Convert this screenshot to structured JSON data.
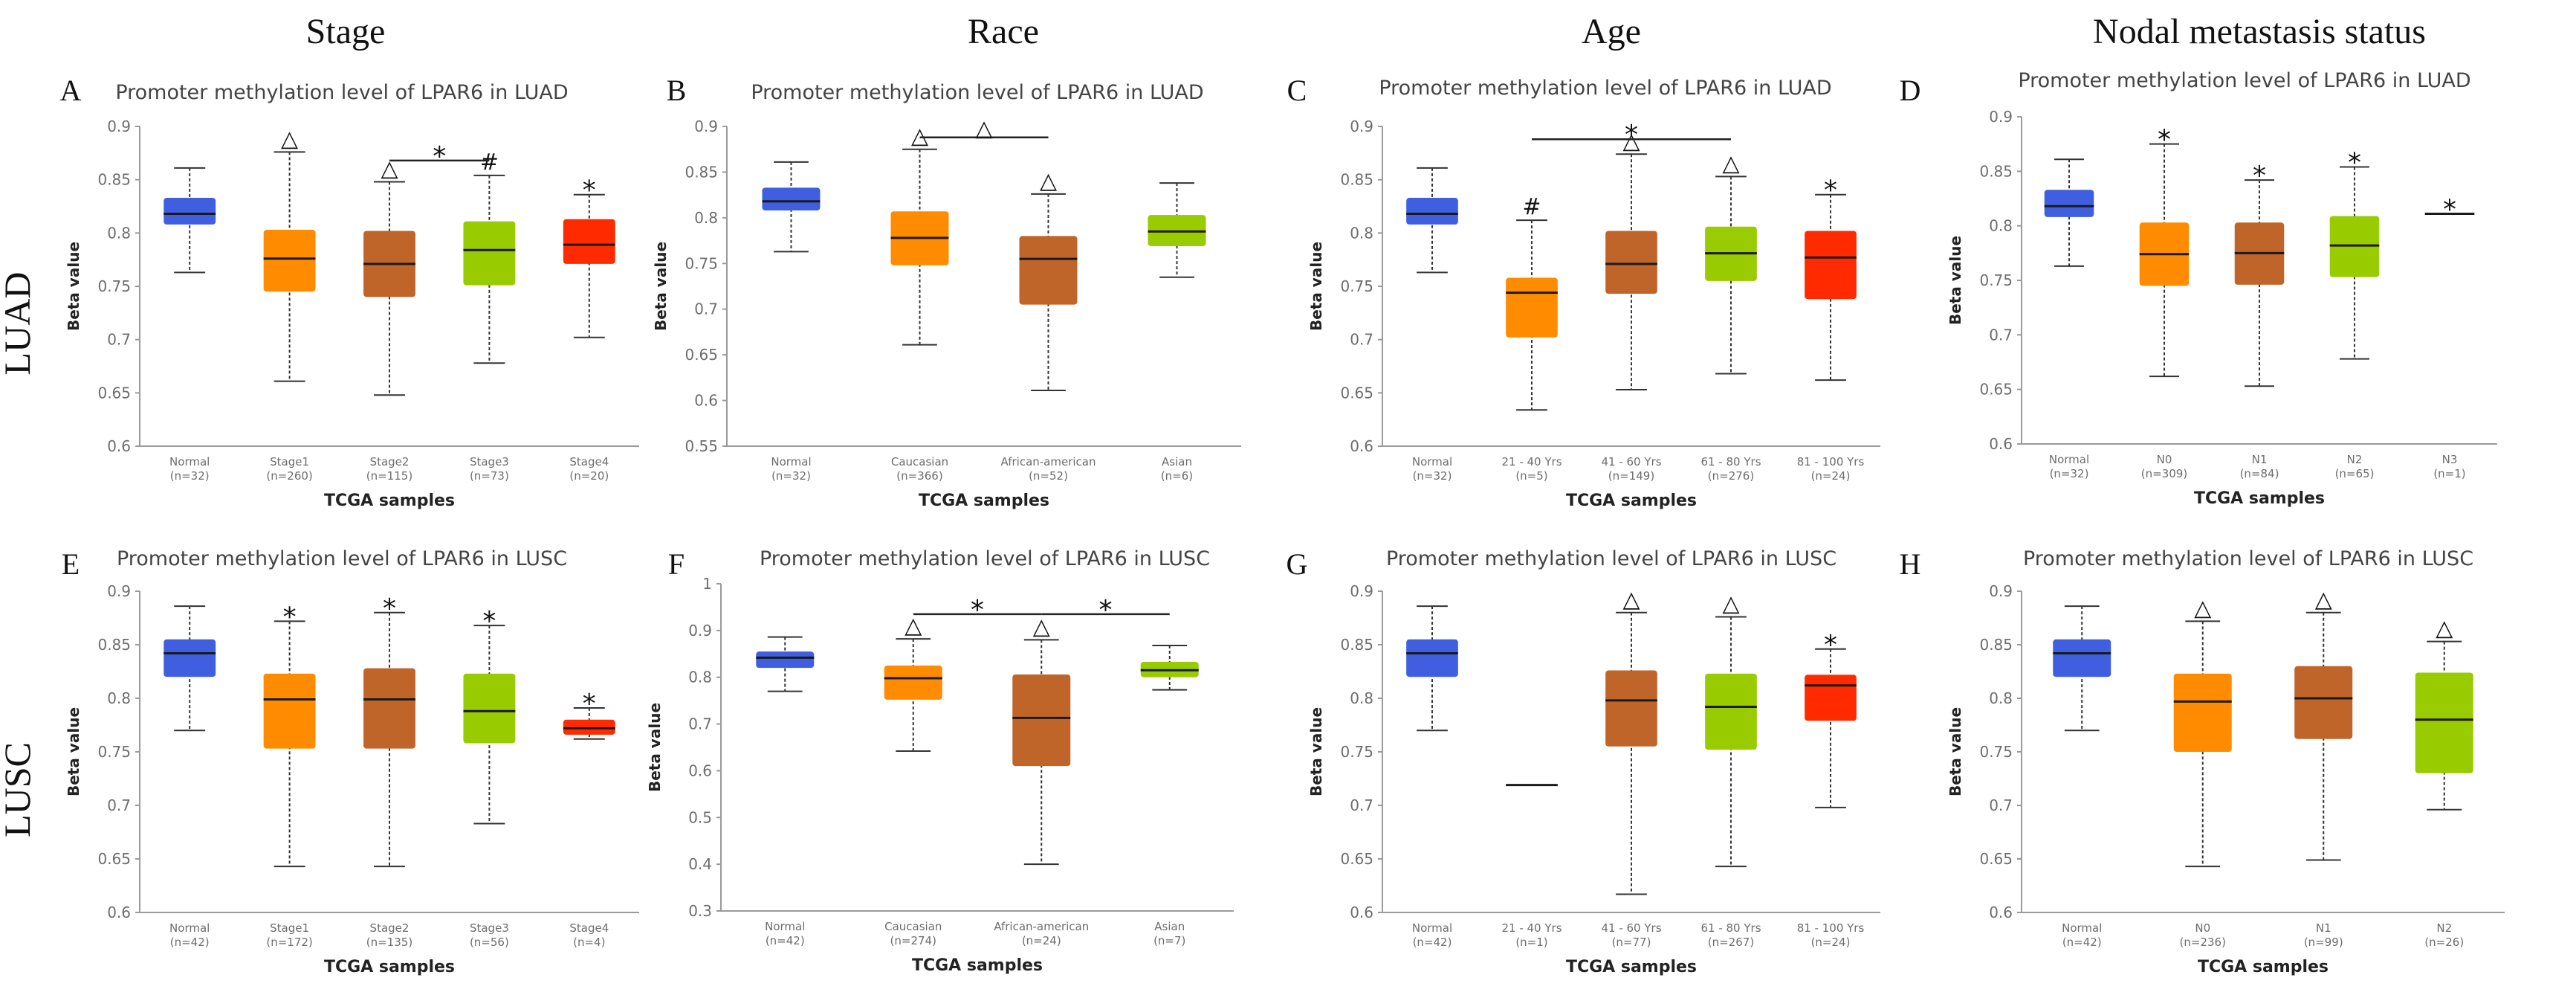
{
  "figure": {
    "column_headers": [
      "Stage",
      "Race",
      "Age",
      "Nodal metastasis status"
    ],
    "row_labels": [
      "LUAD",
      "LUSC"
    ]
  },
  "chart_data": [
    {
      "type": "box",
      "panel": "A",
      "title": "Promoter methylation level of LPAR6 in LUAD",
      "xlabel": "TCGA samples",
      "ylabel": "Beta value",
      "ylim": [
        0.6,
        0.9
      ],
      "yticks": [
        "0.6",
        "0.65",
        "0.7",
        "0.75",
        "0.8",
        "0.85",
        "0.9"
      ],
      "categories": [
        "Normal",
        "Stage1",
        "Stage2",
        "Stage3",
        "Stage4"
      ],
      "counts": [
        "(n=32)",
        "(n=260)",
        "(n=115)",
        "(n=73)",
        "(n=20)"
      ],
      "colors": [
        "#3f5fe0",
        "#ff8c00",
        "#c0652a",
        "#99cc00",
        "#ff2a00"
      ],
      "boxes": [
        {
          "min": 0.763,
          "q1": 0.808,
          "median": 0.818,
          "q3": 0.833,
          "max": 0.861
        },
        {
          "min": 0.661,
          "q1": 0.745,
          "median": 0.776,
          "q3": 0.803,
          "max": 0.876
        },
        {
          "min": 0.648,
          "q1": 0.74,
          "median": 0.771,
          "q3": 0.802,
          "max": 0.848
        },
        {
          "min": 0.678,
          "q1": 0.751,
          "median": 0.784,
          "q3": 0.811,
          "max": 0.854
        },
        {
          "min": 0.702,
          "q1": 0.771,
          "median": 0.789,
          "q3": 0.813,
          "max": 0.836
        }
      ],
      "markers": [
        {
          "index": 1,
          "symbol": "△",
          "y": 0.876
        },
        {
          "index": 2,
          "symbol": "△",
          "y": 0.848
        },
        {
          "index": 3,
          "symbol": "#",
          "y": 0.854
        },
        {
          "index": 4,
          "symbol": "*",
          "y": 0.836
        }
      ],
      "brackets": [
        {
          "from": 2,
          "to": 3,
          "y": 0.868,
          "symbol": "*"
        }
      ]
    },
    {
      "type": "box",
      "panel": "B",
      "title": "Promoter methylation level of LPAR6 in LUAD",
      "xlabel": "TCGA samples",
      "ylabel": "Beta value",
      "ylim": [
        0.55,
        0.9
      ],
      "yticks": [
        "0.55",
        "0.6",
        "0.65",
        "0.7",
        "0.75",
        "0.8",
        "0.85",
        "0.9"
      ],
      "categories": [
        "Normal",
        "Caucasian",
        "African-american",
        "Asian"
      ],
      "counts": [
        "(n=32)",
        "(n=366)",
        "(n=52)",
        "(n=6)"
      ],
      "colors": [
        "#3f5fe0",
        "#ff8c00",
        "#c0652a",
        "#99cc00"
      ],
      "boxes": [
        {
          "min": 0.763,
          "q1": 0.808,
          "median": 0.818,
          "q3": 0.833,
          "max": 0.861
        },
        {
          "min": 0.661,
          "q1": 0.748,
          "median": 0.778,
          "q3": 0.807,
          "max": 0.875
        },
        {
          "min": 0.611,
          "q1": 0.705,
          "median": 0.755,
          "q3": 0.78,
          "max": 0.826
        },
        {
          "min": 0.735,
          "q1": 0.769,
          "median": 0.785,
          "q3": 0.803,
          "max": 0.838
        }
      ],
      "markers": [
        {
          "index": 1,
          "symbol": "△",
          "y": 0.875
        },
        {
          "index": 2,
          "symbol": "△",
          "y": 0.826
        }
      ],
      "brackets": [
        {
          "from": 1,
          "to": 2,
          "y": 0.888,
          "symbol": "△"
        }
      ]
    },
    {
      "type": "box",
      "panel": "C",
      "title": "Promoter methylation level of LPAR6 in LUAD",
      "xlabel": "TCGA samples",
      "ylabel": "Beta value",
      "ylim": [
        0.6,
        0.9
      ],
      "yticks": [
        "0.6",
        "0.65",
        "0.7",
        "0.75",
        "0.8",
        "0.85",
        "0.9"
      ],
      "categories": [
        "Normal",
        "21 - 40 Yrs",
        "41 - 60 Yrs",
        "61 - 80 Yrs",
        "81 - 100 Yrs"
      ],
      "counts": [
        "(n=32)",
        "(n=5)",
        "(n=149)",
        "(n=276)",
        "(n=24)"
      ],
      "colors": [
        "#3f5fe0",
        "#ff8c00",
        "#c0652a",
        "#99cc00",
        "#ff2a00"
      ],
      "boxes": [
        {
          "min": 0.763,
          "q1": 0.808,
          "median": 0.818,
          "q3": 0.833,
          "max": 0.861
        },
        {
          "min": 0.634,
          "q1": 0.702,
          "median": 0.744,
          "q3": 0.758,
          "max": 0.812
        },
        {
          "min": 0.653,
          "q1": 0.743,
          "median": 0.771,
          "q3": 0.802,
          "max": 0.874
        },
        {
          "min": 0.668,
          "q1": 0.755,
          "median": 0.781,
          "q3": 0.806,
          "max": 0.853
        },
        {
          "min": 0.662,
          "q1": 0.738,
          "median": 0.777,
          "q3": 0.802,
          "max": 0.836
        }
      ],
      "markers": [
        {
          "index": 1,
          "symbol": "#",
          "y": 0.812
        },
        {
          "index": 2,
          "symbol": "△",
          "y": 0.874
        },
        {
          "index": 3,
          "symbol": "△",
          "y": 0.853
        },
        {
          "index": 4,
          "symbol": "*",
          "y": 0.836
        }
      ],
      "brackets": [
        {
          "from": 1,
          "to": 3,
          "y": 0.888,
          "symbol": "*"
        }
      ]
    },
    {
      "type": "box",
      "panel": "D",
      "title": "Promoter methylation level of LPAR6 in LUAD",
      "xlabel": "TCGA samples",
      "ylabel": "Beta value",
      "ylim": [
        0.6,
        0.9
      ],
      "yticks": [
        "0.6",
        "0.65",
        "0.7",
        "0.75",
        "0.8",
        "0.85",
        "0.9"
      ],
      "categories": [
        "Normal",
        "N0",
        "N1",
        "N2",
        "N3"
      ],
      "counts": [
        "(n=32)",
        "(n=309)",
        "(n=84)",
        "(n=65)",
        "(n=1)"
      ],
      "colors": [
        "#3f5fe0",
        "#ff8c00",
        "#c0652a",
        "#99cc00",
        "#ff2a00"
      ],
      "boxes": [
        {
          "min": 0.763,
          "q1": 0.808,
          "median": 0.818,
          "q3": 0.833,
          "max": 0.861
        },
        {
          "min": 0.662,
          "q1": 0.745,
          "median": 0.774,
          "q3": 0.803,
          "max": 0.875
        },
        {
          "min": 0.653,
          "q1": 0.746,
          "median": 0.775,
          "q3": 0.803,
          "max": 0.842
        },
        {
          "min": 0.678,
          "q1": 0.753,
          "median": 0.782,
          "q3": 0.809,
          "max": 0.854
        },
        {
          "min": 0.811,
          "q1": 0.811,
          "median": 0.811,
          "q3": 0.811,
          "max": 0.811
        }
      ],
      "markers": [
        {
          "index": 1,
          "symbol": "*",
          "y": 0.875
        },
        {
          "index": 2,
          "symbol": "*",
          "y": 0.842
        },
        {
          "index": 3,
          "symbol": "*",
          "y": 0.854
        },
        {
          "index": 4,
          "symbol": "*",
          "y": 0.811
        }
      ],
      "brackets": []
    },
    {
      "type": "box",
      "panel": "E",
      "title": "Promoter methylation level of LPAR6 in LUSC",
      "xlabel": "TCGA samples",
      "ylabel": "Beta value",
      "ylim": [
        0.6,
        0.9
      ],
      "yticks": [
        "0.6",
        "0.65",
        "0.7",
        "0.75",
        "0.8",
        "0.85",
        "0.9"
      ],
      "categories": [
        "Normal",
        "Stage1",
        "Stage2",
        "Stage3",
        "Stage4"
      ],
      "counts": [
        "(n=42)",
        "(n=172)",
        "(n=135)",
        "(n=56)",
        "(n=4)"
      ],
      "colors": [
        "#3f5fe0",
        "#ff8c00",
        "#c0652a",
        "#99cc00",
        "#ff2a00"
      ],
      "boxes": [
        {
          "min": 0.77,
          "q1": 0.82,
          "median": 0.842,
          "q3": 0.855,
          "max": 0.886
        },
        {
          "min": 0.643,
          "q1": 0.753,
          "median": 0.799,
          "q3": 0.823,
          "max": 0.872
        },
        {
          "min": 0.643,
          "q1": 0.753,
          "median": 0.799,
          "q3": 0.828,
          "max": 0.88
        },
        {
          "min": 0.683,
          "q1": 0.758,
          "median": 0.788,
          "q3": 0.823,
          "max": 0.868
        },
        {
          "min": 0.762,
          "q1": 0.766,
          "median": 0.772,
          "q3": 0.78,
          "max": 0.791
        }
      ],
      "markers": [
        {
          "index": 1,
          "symbol": "*",
          "y": 0.872
        },
        {
          "index": 2,
          "symbol": "*",
          "y": 0.88
        },
        {
          "index": 3,
          "symbol": "*",
          "y": 0.868
        },
        {
          "index": 4,
          "symbol": "*",
          "y": 0.791
        }
      ],
      "brackets": []
    },
    {
      "type": "box",
      "panel": "F",
      "title": "Promoter methylation level of LPAR6 in LUSC",
      "xlabel": "TCGA samples",
      "ylabel": "Beta value",
      "ylim": [
        0.3,
        1.0
      ],
      "yticks": [
        "0.3",
        "0.4",
        "0.5",
        "0.6",
        "0.7",
        "0.8",
        "0.9",
        "1"
      ],
      "categories": [
        "Normal",
        "Caucasian",
        "African-american",
        "Asian"
      ],
      "counts": [
        "(n=42)",
        "(n=274)",
        "(n=24)",
        "(n=7)"
      ],
      "colors": [
        "#3f5fe0",
        "#ff8c00",
        "#c0652a",
        "#99cc00"
      ],
      "boxes": [
        {
          "min": 0.77,
          "q1": 0.82,
          "median": 0.842,
          "q3": 0.855,
          "max": 0.886
        },
        {
          "min": 0.642,
          "q1": 0.752,
          "median": 0.798,
          "q3": 0.825,
          "max": 0.882
        },
        {
          "min": 0.4,
          "q1": 0.61,
          "median": 0.713,
          "q3": 0.806,
          "max": 0.88
        },
        {
          "min": 0.773,
          "q1": 0.8,
          "median": 0.815,
          "q3": 0.833,
          "max": 0.868
        }
      ],
      "markers": [
        {
          "index": 1,
          "symbol": "△",
          "y": 0.882
        },
        {
          "index": 2,
          "symbol": "△",
          "y": 0.88
        }
      ],
      "brackets": [
        {
          "from": 1,
          "to": 2,
          "y": 0.935,
          "symbol": "*"
        },
        {
          "from": 2,
          "to": 3,
          "y": 0.935,
          "symbol": "*"
        }
      ]
    },
    {
      "type": "box",
      "panel": "G",
      "title": "Promoter methylation level of LPAR6 in LUSC",
      "xlabel": "TCGA samples",
      "ylabel": "Beta value",
      "ylim": [
        0.6,
        0.9
      ],
      "yticks": [
        "0.6",
        "0.65",
        "0.7",
        "0.75",
        "0.8",
        "0.85",
        "0.9"
      ],
      "categories": [
        "Normal",
        "21 - 40 Yrs",
        "41 - 60 Yrs",
        "61 - 80 Yrs",
        "81 - 100 Yrs"
      ],
      "counts": [
        "(n=42)",
        "(n=1)",
        "(n=77)",
        "(n=267)",
        "(n=24)"
      ],
      "colors": [
        "#3f5fe0",
        "#ff8c00",
        "#c0652a",
        "#99cc00",
        "#ff2a00"
      ],
      "boxes": [
        {
          "min": 0.77,
          "q1": 0.82,
          "median": 0.842,
          "q3": 0.855,
          "max": 0.886
        },
        {
          "min": 0.719,
          "q1": 0.719,
          "median": 0.719,
          "q3": 0.719,
          "max": 0.719
        },
        {
          "min": 0.617,
          "q1": 0.755,
          "median": 0.798,
          "q3": 0.826,
          "max": 0.88
        },
        {
          "min": 0.643,
          "q1": 0.752,
          "median": 0.792,
          "q3": 0.823,
          "max": 0.876
        },
        {
          "min": 0.698,
          "q1": 0.779,
          "median": 0.812,
          "q3": 0.822,
          "max": 0.846
        }
      ],
      "markers": [
        {
          "index": 2,
          "symbol": "△",
          "y": 0.88
        },
        {
          "index": 3,
          "symbol": "△",
          "y": 0.876
        },
        {
          "index": 4,
          "symbol": "*",
          "y": 0.846
        }
      ],
      "brackets": []
    },
    {
      "type": "box",
      "panel": "H",
      "title": "Promoter methylation level of LPAR6 in LUSC",
      "xlabel": "TCGA samples",
      "ylabel": "Beta value",
      "ylim": [
        0.6,
        0.9
      ],
      "yticks": [
        "0.6",
        "0.65",
        "0.7",
        "0.75",
        "0.8",
        "0.85",
        "0.9"
      ],
      "categories": [
        "Normal",
        "N0",
        "N1",
        "N2"
      ],
      "counts": [
        "(n=42)",
        "(n=236)",
        "(n=99)",
        "(n=26)"
      ],
      "colors": [
        "#3f5fe0",
        "#ff8c00",
        "#c0652a",
        "#99cc00"
      ],
      "boxes": [
        {
          "min": 0.77,
          "q1": 0.82,
          "median": 0.842,
          "q3": 0.855,
          "max": 0.886
        },
        {
          "min": 0.643,
          "q1": 0.75,
          "median": 0.797,
          "q3": 0.823,
          "max": 0.872
        },
        {
          "min": 0.649,
          "q1": 0.762,
          "median": 0.8,
          "q3": 0.83,
          "max": 0.88
        },
        {
          "min": 0.696,
          "q1": 0.73,
          "median": 0.78,
          "q3": 0.824,
          "max": 0.853
        }
      ],
      "markers": [
        {
          "index": 1,
          "symbol": "△",
          "y": 0.872
        },
        {
          "index": 2,
          "symbol": "△",
          "y": 0.88
        },
        {
          "index": 3,
          "symbol": "△",
          "y": 0.853
        }
      ],
      "brackets": []
    }
  ]
}
